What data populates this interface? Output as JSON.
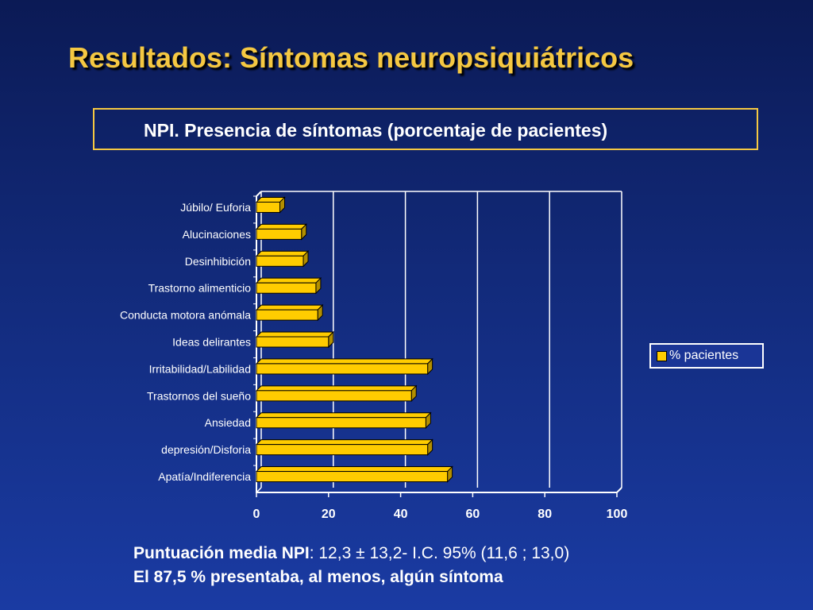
{
  "slide": {
    "title": "Resultados: Síntomas neuropsiquiátricos",
    "subtitle": "NPI. Presencia de síntomas (porcentaje de pacientes)"
  },
  "legend": {
    "label": "% pacientes"
  },
  "footer": {
    "line1_bold": "Puntuación media NPI",
    "line1_rest": ": 12,3 ± 13,2- I.C. 95% (11,6 ; 13,0)",
    "line2": "El 87,5 % presentaba, al menos, algún síntoma"
  },
  "colors": {
    "bar": "#ffcc00",
    "bar_shadow": "#b38f00",
    "text": "#ffffff",
    "accent": "#f5c842"
  },
  "chart_data": {
    "type": "bar",
    "orientation": "horizontal",
    "title": "NPI. Presencia de síntomas (porcentaje de pacientes)",
    "categories": [
      "Júbilo/ Euforia",
      "Alucinaciones",
      "Desinhibición",
      "Trastorno alimenticio",
      "Conducta motora anómala",
      "Ideas delirantes",
      "Irritabilidad/Labilidad",
      "Trastornos del sueño",
      "Ansiedad",
      "depresión/Disforia",
      "Apatía/Indiferencia"
    ],
    "series": [
      {
        "name": "% pacientes",
        "values": [
          6.5,
          12.5,
          13,
          16.5,
          17,
          20,
          47.5,
          43,
          47,
          47.5,
          53
        ]
      }
    ],
    "xlim": [
      0,
      100
    ],
    "xticks": [
      0,
      20,
      40,
      60,
      80,
      100
    ],
    "grid": true,
    "legend_position": "right"
  }
}
